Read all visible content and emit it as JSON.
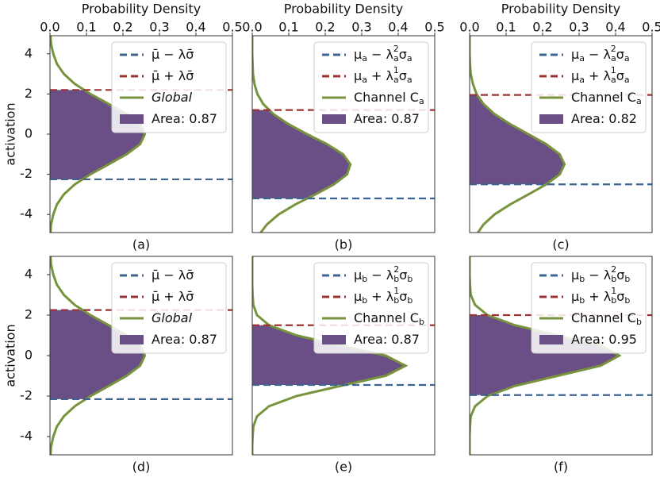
{
  "chart_data": [
    {
      "type": "density",
      "title": "(a)",
      "xlabel": "Probability Density",
      "ylabel": "activation",
      "xlim": [
        0,
        0.5
      ],
      "xticks": [
        {
          "value": 0,
          "label": "0.0"
        },
        0.1,
        0.2,
        0.3,
        0.4,
        0.5
      ],
      "ylim": [
        -4.9,
        4.9
      ],
      "yticks": [
        -4,
        -2,
        0,
        2,
        4
      ],
      "lower": {
        "name": [
          "μ̄ − λσ̄"
        ],
        "color": "#3d6390",
        "value": -2.25
      },
      "upper": {
        "name": [
          "μ̄ + λσ̄"
        ],
        "color": "#9a3434",
        "value": 2.2
      },
      "curve": {
        "name": [
          "Global"
        ],
        "italic": true,
        "color": "#77933c",
        "y": [
          -5,
          -4.5,
          -4,
          -3.5,
          -3,
          -2.5,
          -2,
          -1.5,
          -1,
          -0.5,
          0,
          0.5,
          1,
          1.5,
          2,
          2.5,
          3,
          3.5,
          4,
          4.5,
          5
        ],
        "values": [
          0.001,
          0.003,
          0.009,
          0.019,
          0.038,
          0.068,
          0.111,
          0.161,
          0.21,
          0.247,
          0.26,
          0.247,
          0.21,
          0.161,
          0.111,
          0.068,
          0.038,
          0.019,
          0.009,
          0.003,
          0.001
        ]
      },
      "area": {
        "name": [
          "Area: 0.87"
        ],
        "color": "#6a4f86"
      }
    },
    {
      "type": "density",
      "title": "(b)",
      "xlabel": "Probability Density",
      "xlim": [
        0,
        0.5
      ],
      "xticks": [
        {
          "value": 0,
          "label": "0.0"
        },
        0.1,
        0.2,
        0.3,
        0.4,
        0.5
      ],
      "ylim": [
        -4.9,
        4.9
      ],
      "lower": {
        "name": [
          "μ",
          {
            "sub": "a"
          },
          " − λ",
          {
            "sub": "a"
          },
          {
            "sup": "2"
          },
          "σ",
          {
            "sub": "a"
          }
        ],
        "color": "#3d6390",
        "value": -3.2
      },
      "upper": {
        "name": [
          "μ",
          {
            "sub": "a"
          },
          " + λ",
          {
            "sub": "a"
          },
          {
            "sup": "1"
          },
          "σ",
          {
            "sub": "a"
          }
        ],
        "color": "#9a3434",
        "value": 1.2
      },
      "curve": {
        "name": [
          "Channel C",
          {
            "sub": "a"
          }
        ],
        "color": "#77933c",
        "y": [
          -5,
          -4.5,
          -4,
          -3.5,
          -3,
          -2.5,
          -2,
          -1.5,
          -1,
          -0.5,
          0,
          0.5,
          1,
          1.5,
          2,
          2.5,
          3,
          3.5,
          4,
          4.5,
          5
        ],
        "values": [
          0.019,
          0.04,
          0.072,
          0.118,
          0.173,
          0.224,
          0.26,
          0.269,
          0.249,
          0.205,
          0.15,
          0.099,
          0.058,
          0.03,
          0.014,
          0.006,
          0.002,
          0.001,
          0,
          0,
          0
        ]
      },
      "area": {
        "name": [
          "Area: 0.87"
        ],
        "color": "#6a4f86"
      }
    },
    {
      "type": "density",
      "title": "(c)",
      "xlabel": "Probability Density",
      "xlim": [
        0,
        0.5
      ],
      "xticks": [
        {
          "value": 0,
          "label": "0.0"
        },
        0.1,
        0.2,
        0.3,
        0.4,
        0.5
      ],
      "ylim": [
        -4.9,
        4.9
      ],
      "lower": {
        "name": [
          "μ",
          {
            "sub": "a"
          },
          " − λ",
          {
            "sub": "a"
          },
          {
            "sup": "2"
          },
          "σ",
          {
            "sub": "a"
          }
        ],
        "color": "#3d6390",
        "value": -2.5
      },
      "upper": {
        "name": [
          "μ",
          {
            "sub": "a"
          },
          " + λ",
          {
            "sub": "a"
          },
          {
            "sup": "1"
          },
          "σ",
          {
            "sub": "a"
          }
        ],
        "color": "#9a3434",
        "value": 1.95
      },
      "curve": {
        "name": [
          "Channel C",
          {
            "sub": "a"
          }
        ],
        "color": "#77933c",
        "y": [
          -5,
          -4.5,
          -4,
          -3.5,
          -3,
          -2.5,
          -2,
          -1.5,
          -1,
          -0.5,
          0,
          0.5,
          1,
          1.5,
          2,
          2.5,
          3,
          3.5,
          4,
          4.5,
          5
        ],
        "values": [
          0.019,
          0.038,
          0.068,
          0.111,
          0.161,
          0.21,
          0.247,
          0.26,
          0.247,
          0.21,
          0.161,
          0.111,
          0.068,
          0.038,
          0.019,
          0.009,
          0.003,
          0.001,
          0,
          0,
          0
        ]
      },
      "area": {
        "name": [
          "Area: 0.82"
        ],
        "color": "#6a4f86"
      }
    },
    {
      "type": "density",
      "title": "(d)",
      "ylabel": "activation",
      "xlim": [
        0,
        0.5
      ],
      "ylim": [
        -4.9,
        4.9
      ],
      "yticks": [
        -4,
        -2,
        0,
        2,
        4
      ],
      "lower": {
        "name": [
          "μ̄ − λσ̄"
        ],
        "color": "#3d6390",
        "value": -2.15
      },
      "upper": {
        "name": [
          "μ̄ + λσ̄"
        ],
        "color": "#9a3434",
        "value": 2.25
      },
      "curve": {
        "name": [
          "Global"
        ],
        "italic": true,
        "color": "#77933c",
        "y": [
          -5,
          -4.5,
          -4,
          -3.5,
          -3,
          -2.5,
          -2,
          -1.5,
          -1,
          -0.5,
          0,
          0.5,
          1,
          1.5,
          2,
          2.5,
          3,
          3.5,
          4,
          4.5,
          5
        ],
        "values": [
          0.001,
          0.003,
          0.009,
          0.019,
          0.038,
          0.068,
          0.111,
          0.161,
          0.21,
          0.247,
          0.26,
          0.247,
          0.21,
          0.161,
          0.111,
          0.068,
          0.038,
          0.019,
          0.009,
          0.003,
          0.001
        ]
      },
      "area": {
        "name": [
          "Area: 0.87"
        ],
        "color": "#6a4f86"
      }
    },
    {
      "type": "density",
      "title": "(e)",
      "xlim": [
        0,
        0.5
      ],
      "ylim": [
        -4.9,
        4.9
      ],
      "lower": {
        "name": [
          "μ",
          {
            "sub": "b"
          },
          " − λ",
          {
            "sub": "b"
          },
          {
            "sup": "2"
          },
          "σ",
          {
            "sub": "b"
          }
        ],
        "color": "#3d6390",
        "value": -1.45
      },
      "upper": {
        "name": [
          "μ",
          {
            "sub": "b"
          },
          " + λ",
          {
            "sub": "b"
          },
          {
            "sup": "1"
          },
          "σ",
          {
            "sub": "b"
          }
        ],
        "color": "#9a3434",
        "value": 1.5
      },
      "curve": {
        "name": [
          "Channel C",
          {
            "sub": "b"
          }
        ],
        "color": "#77933c",
        "y": [
          -5,
          -4.5,
          -4,
          -3.5,
          -3,
          -2.5,
          -2,
          -1.5,
          -1,
          -0.5,
          0,
          0.5,
          1,
          1.5,
          2,
          2.5,
          3,
          3.5,
          4,
          4.5,
          5
        ],
        "values": [
          0,
          0,
          0.001,
          0.003,
          0.013,
          0.046,
          0.121,
          0.241,
          0.366,
          0.42,
          0.366,
          0.241,
          0.121,
          0.046,
          0.013,
          0.003,
          0.001,
          0,
          0,
          0,
          0
        ]
      },
      "area": {
        "name": [
          "Area: 0.87"
        ],
        "color": "#6a4f86"
      }
    },
    {
      "type": "density",
      "title": "(f)",
      "xlim": [
        0,
        0.5
      ],
      "ylim": [
        -4.9,
        4.9
      ],
      "lower": {
        "name": [
          "μ",
          {
            "sub": "b"
          },
          " − λ",
          {
            "sub": "b"
          },
          {
            "sup": "2"
          },
          "σ",
          {
            "sub": "b"
          }
        ],
        "color": "#3d6390",
        "value": -1.95
      },
      "upper": {
        "name": [
          "μ",
          {
            "sub": "b"
          },
          " + λ",
          {
            "sub": "b"
          },
          {
            "sup": "1"
          },
          "σ",
          {
            "sub": "b"
          }
        ],
        "color": "#9a3434",
        "value": 2.0
      },
      "curve": {
        "name": [
          "Channel C",
          {
            "sub": "b"
          }
        ],
        "color": "#77933c",
        "y": [
          -5,
          -4.5,
          -4,
          -3.5,
          -3,
          -2.5,
          -2,
          -1.5,
          -1,
          -0.5,
          0,
          0.5,
          1,
          1.5,
          2,
          2.5,
          3,
          3.5,
          4,
          4.5,
          5
        ],
        "values": [
          0,
          0,
          0,
          0.001,
          0.003,
          0.015,
          0.049,
          0.124,
          0.241,
          0.359,
          0.41,
          0.359,
          0.241,
          0.124,
          0.049,
          0.015,
          0.003,
          0.001,
          0,
          0,
          0
        ]
      },
      "area": {
        "name": [
          "Area: 0.95"
        ],
        "color": "#6a4f86"
      }
    }
  ]
}
